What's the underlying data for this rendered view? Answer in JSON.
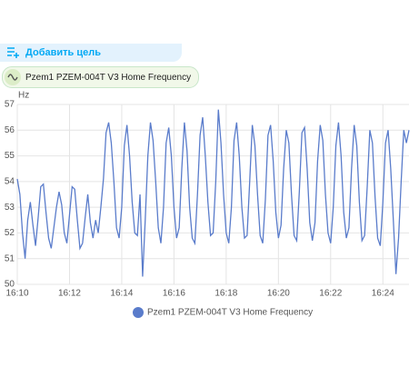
{
  "header": {
    "add_target": "Добавить цель"
  },
  "chip": {
    "label": "Pzem1 PZEM-004T V3 Home Frequency"
  },
  "chart_data": {
    "type": "line",
    "ylabel": "Hz",
    "xlim": [
      970,
      985
    ],
    "ylim": [
      50,
      57
    ],
    "xticks": [
      {
        "value": 970,
        "label": "16:10"
      },
      {
        "value": 972,
        "label": "16:12"
      },
      {
        "value": 974,
        "label": "16:14"
      },
      {
        "value": 976,
        "label": "16:16"
      },
      {
        "value": 978,
        "label": "16:18"
      },
      {
        "value": 980,
        "label": "16:20"
      },
      {
        "value": 982,
        "label": "16:22"
      },
      {
        "value": 984,
        "label": "16:24"
      }
    ],
    "yticks": [
      50,
      51,
      52,
      53,
      54,
      55,
      56,
      57
    ],
    "grid": true,
    "x": [
      970,
      970.1,
      970.2,
      970.3,
      970.4,
      970.5,
      970.6,
      970.7,
      970.8,
      970.9,
      971,
      971.1,
      971.2,
      971.3,
      971.4,
      971.5,
      971.6,
      971.7,
      971.8,
      971.9,
      972,
      972.1,
      972.2,
      972.3,
      972.4,
      972.5,
      972.6,
      972.7,
      972.8,
      972.9,
      973,
      973.1,
      973.2,
      973.3,
      973.4,
      973.5,
      973.6,
      973.7,
      973.8,
      973.9,
      974,
      974.1,
      974.2,
      974.3,
      974.4,
      974.5,
      974.6,
      974.7,
      974.8,
      974.9,
      975,
      975.1,
      975.2,
      975.3,
      975.4,
      975.5,
      975.6,
      975.7,
      975.8,
      975.9,
      976,
      976.1,
      976.2,
      976.3,
      976.4,
      976.5,
      976.6,
      976.7,
      976.8,
      976.9,
      977,
      977.1,
      977.2,
      977.3,
      977.4,
      977.5,
      977.6,
      977.7,
      977.8,
      977.9,
      978,
      978.1,
      978.2,
      978.3,
      978.4,
      978.5,
      978.6,
      978.7,
      978.8,
      978.9,
      979,
      979.1,
      979.2,
      979.3,
      979.4,
      979.5,
      979.6,
      979.7,
      979.8,
      979.9,
      980,
      980.1,
      980.2,
      980.3,
      980.4,
      980.5,
      980.6,
      980.7,
      980.8,
      980.9,
      981,
      981.1,
      981.2,
      981.3,
      981.4,
      981.5,
      981.6,
      981.7,
      981.8,
      981.9,
      982,
      982.1,
      982.2,
      982.3,
      982.4,
      982.5,
      982.6,
      982.7,
      982.8,
      982.9,
      983,
      983.1,
      983.2,
      983.3,
      983.4,
      983.5,
      983.6,
      983.7,
      983.8,
      983.9,
      984,
      984.1,
      984.2,
      984.3,
      984.4,
      984.5,
      984.6,
      984.7,
      984.8,
      984.9,
      985
    ],
    "series": [
      {
        "name": "Pzem1 PZEM-004T V3 Home Frequency",
        "color": "#5a7ccb",
        "values": [
          54.1,
          53.5,
          52.0,
          51.0,
          52.5,
          53.2,
          52.3,
          51.5,
          52.6,
          53.8,
          53.9,
          52.8,
          51.8,
          51.4,
          52.2,
          53.0,
          53.6,
          53.1,
          52.0,
          51.6,
          52.7,
          53.8,
          53.7,
          52.5,
          51.4,
          51.6,
          52.6,
          53.5,
          52.4,
          51.8,
          52.5,
          52.0,
          53.0,
          54.1,
          55.9,
          56.3,
          55.5,
          54.0,
          52.2,
          51.8,
          53.0,
          55.4,
          56.2,
          55.0,
          53.2,
          52.0,
          51.9,
          53.5,
          50.3,
          52.5,
          55.0,
          56.3,
          55.6,
          54.0,
          52.2,
          51.6,
          53.0,
          55.5,
          56.1,
          55.0,
          53.0,
          51.8,
          52.2,
          54.5,
          56.3,
          55.2,
          53.0,
          51.8,
          51.6,
          53.5,
          55.8,
          56.5,
          55.0,
          53.2,
          51.9,
          52.0,
          54.0,
          56.8,
          55.5,
          53.5,
          52.0,
          51.6,
          53.0,
          55.6,
          56.3,
          55.0,
          53.0,
          51.8,
          51.9,
          54.0,
          56.2,
          55.4,
          53.5,
          51.9,
          51.6,
          53.3,
          55.8,
          56.2,
          54.8,
          52.8,
          51.8,
          52.3,
          54.5,
          56.0,
          55.5,
          53.5,
          51.9,
          51.7,
          53.6,
          55.9,
          56.1,
          54.5,
          52.4,
          51.7,
          52.4,
          54.8,
          56.2,
          55.6,
          53.5,
          52.0,
          51.6,
          53.0,
          55.4,
          56.3,
          55.0,
          52.8,
          51.8,
          52.2,
          54.5,
          56.2,
          55.4,
          53.2,
          51.7,
          51.9,
          53.8,
          56.0,
          55.5,
          53.4,
          51.8,
          51.5,
          53.2,
          55.5,
          56.0,
          54.5,
          52.5,
          50.4,
          51.8,
          54.0,
          56.0,
          55.5,
          56.0
        ]
      }
    ]
  }
}
